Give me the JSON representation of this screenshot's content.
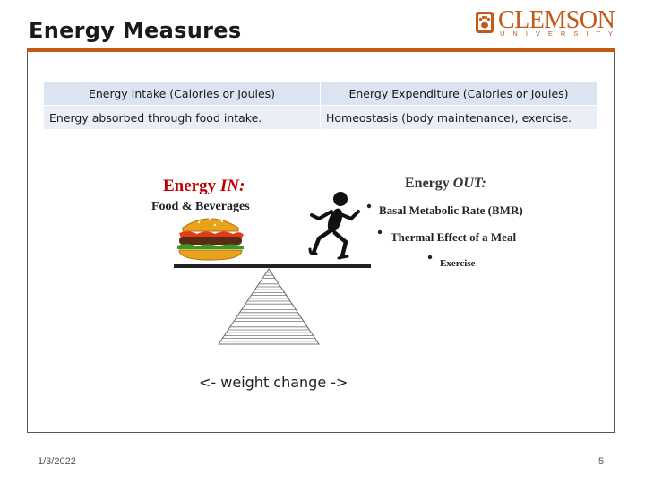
{
  "slide": {
    "title": "Energy Measures",
    "footer_date": "1/3/2022",
    "page_number": "5"
  },
  "logo": {
    "wordmark": "CLEMSON",
    "subline": "UNIVERSITY",
    "color": "#c45a1a",
    "icon": "tiger-paw-icon"
  },
  "table": {
    "headers": [
      "Energy Intake (Calories or Joules)",
      "Energy Expenditure (Calories or Joules)"
    ],
    "row": [
      "Energy absorbed through food intake.",
      "Homeostasis (body maintenance), exercise."
    ]
  },
  "figure": {
    "in_heading_prefix": "Energy ",
    "in_heading_em": "IN:",
    "in_subheading": "Food & Beverages",
    "out_heading_prefix": "Energy ",
    "out_heading_em": "OUT:",
    "out_items": [
      "Basal Metabolic Rate (BMR)",
      "Thermal Effect of a Meal",
      "Exercise"
    ],
    "in_color": "#c00000",
    "out_color": "#333333",
    "icons": [
      "hamburger-icon",
      "running-figure-icon",
      "fulcrum-pyramid-icon"
    ]
  },
  "caption": "<- weight change ->"
}
